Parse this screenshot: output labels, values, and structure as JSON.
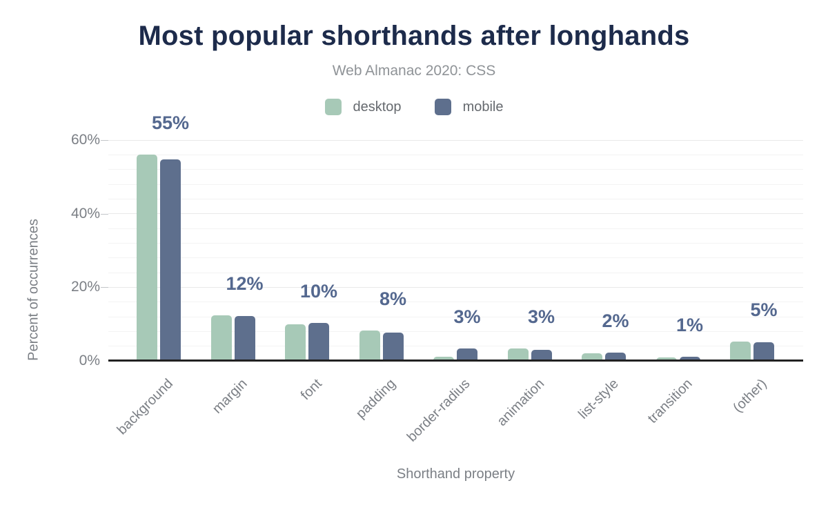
{
  "chart_data": {
    "type": "bar",
    "title": "Most popular shorthands after longhands",
    "subtitle": "Web Almanac 2020: CSS",
    "xlabel": "Shorthand property",
    "ylabel": "Percent of occurrences",
    "categories": [
      "background",
      "margin",
      "font",
      "padding",
      "border-radius",
      "animation",
      "list-style",
      "transition",
      "(other)"
    ],
    "series": [
      {
        "name": "desktop",
        "color": "#a7c9b7",
        "values": [
          56.0,
          12.3,
          10.0,
          8.2,
          1.1,
          3.3,
          2.1,
          1.0,
          5.2
        ]
      },
      {
        "name": "mobile",
        "color": "#5e6f8d",
        "values": [
          54.7,
          12.2,
          10.4,
          7.7,
          3.3,
          3.0,
          2.2,
          1.2,
          5.1
        ]
      }
    ],
    "annotations": [
      "55%",
      "12%",
      "10%",
      "8%",
      "3%",
      "3%",
      "2%",
      "1%",
      "5%"
    ],
    "yticks": [
      {
        "value": 0,
        "label": "0%"
      },
      {
        "value": 20,
        "label": "20%"
      },
      {
        "value": 40,
        "label": "40%"
      },
      {
        "value": 60,
        "label": "60%"
      }
    ],
    "ylim": [
      0,
      60
    ],
    "minor_grid_step": 4,
    "grid": true,
    "legend_position": "top",
    "colors": {
      "title": "#1d2b4b",
      "subtitle": "#8f9397",
      "axis_text": "#7b7f85",
      "legend_text": "#65696e",
      "annotation": "#54688f",
      "axis_line": "#212121",
      "grid_minor": "#f3f3f3",
      "grid_major": "#e9e9e9",
      "tick_mark": "#c2c5c8"
    }
  }
}
